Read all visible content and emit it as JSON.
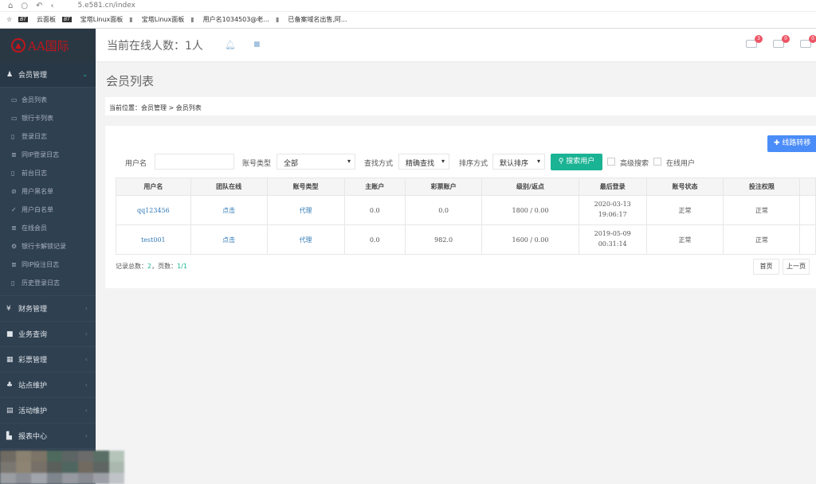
{
  "browser": {
    "url": "5.e581.cn/index",
    "bookmarks": [
      "云面板",
      "宝塔Linux面板",
      "宝塔Linux面板",
      "用户名1034503@老...",
      "已备案域名出售,阿..."
    ]
  },
  "logo": "AA国际",
  "header": {
    "online": "当前在线人数：1人",
    "badges": [
      "3",
      "0",
      "0"
    ]
  },
  "sidebar": {
    "main": {
      "label": "会员管理",
      "items": [
        {
          "icon": "card-icon",
          "g": "▭",
          "label": "会员列表"
        },
        {
          "icon": "credit-card-icon",
          "g": "▭",
          "label": "银行卡列表"
        },
        {
          "icon": "file-icon",
          "g": "▯",
          "label": "登录日志"
        },
        {
          "icon": "list-icon",
          "g": "≣",
          "label": "同IP登录日志"
        },
        {
          "icon": "file-icon",
          "g": "▯",
          "label": "前台日志"
        },
        {
          "icon": "ban-icon",
          "g": "⊘",
          "label": "用户黑名单"
        },
        {
          "icon": "check-icon",
          "g": "✓",
          "label": "用户白名单"
        },
        {
          "icon": "list-icon",
          "g": "≣",
          "label": "在线会员"
        },
        {
          "icon": "gear-icon",
          "g": "⚙",
          "label": "银行卡解锁记录"
        },
        {
          "icon": "list-icon",
          "g": "≣",
          "label": "同IP投注日志"
        },
        {
          "icon": "file-icon",
          "g": "▯",
          "label": "历史登录日志"
        }
      ]
    },
    "groups": [
      {
        "icon": "yen-icon",
        "g": "¥",
        "label": "财务管理"
      },
      {
        "icon": "briefcase-icon",
        "g": "■",
        "label": "业务查询"
      },
      {
        "icon": "grid-icon",
        "g": "▦",
        "label": "彩票管理"
      },
      {
        "icon": "sitemap-icon",
        "g": "♣",
        "label": "站点维护"
      },
      {
        "icon": "calendar-icon",
        "g": "▤",
        "label": "活动维护"
      },
      {
        "icon": "bar-chart-icon",
        "g": "▙",
        "label": "报表中心"
      }
    ]
  },
  "page": {
    "title": "会员列表",
    "breadcrumb": "当前位置：会员管理 > 会员列表"
  },
  "filters": {
    "username_label": "用户名",
    "username_value": "",
    "type_label": "账号类型",
    "type_value": "全部",
    "find_label": "查找方式",
    "find_value": "精确查找",
    "sort_label": "排序方式",
    "sort_value": "默认排序",
    "search_btn": "搜索用户",
    "advanced": "高级搜索",
    "online_users": "在线用户",
    "transfer_btn": "线路转移"
  },
  "table": {
    "headers": [
      "用户名",
      "团队在线",
      "账号类型",
      "主账户",
      "彩票账户",
      "级别/返点",
      "最后登录",
      "账号状态",
      "投注权限",
      ""
    ],
    "rows": [
      [
        "qq123456",
        "点击",
        "代理",
        "0.0",
        "0.0",
        "1800 / 0.00",
        "2020-03-13 19:06:17",
        "正常",
        "正常",
        ""
      ],
      [
        "test001",
        "点击",
        "代理",
        "0.0",
        "982.0",
        "1600 / 0.00",
        "2019-05-09 00:31:14",
        "正常",
        "正常",
        ""
      ]
    ]
  },
  "footer": {
    "total_label": "记录总数：",
    "total": "2",
    "pages_label": "，页数：",
    "pages": "1/1",
    "first": "首页",
    "prev": "上一页"
  }
}
